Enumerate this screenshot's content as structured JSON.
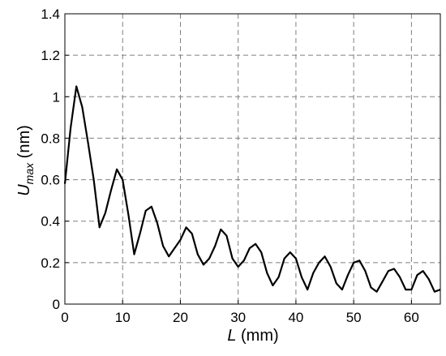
{
  "chart_data": {
    "type": "line",
    "xlabel": {
      "symbol": "L",
      "unit": " (mm)"
    },
    "ylabel": {
      "symbol": "U",
      "subscript": "max",
      "unit": " (nm)"
    },
    "xlim": [
      0,
      65
    ],
    "ylim": [
      0,
      1.4
    ],
    "xticks": [
      0,
      10,
      20,
      30,
      40,
      50,
      60
    ],
    "xtick_labels": [
      "0",
      "10",
      "20",
      "30",
      "40",
      "50",
      "60"
    ],
    "yticks": [
      0,
      0.2,
      0.4,
      0.6,
      0.8,
      1,
      1.2,
      1.4
    ],
    "ytick_labels": [
      "0",
      "0.2",
      "0.4",
      "0.6",
      "0.8",
      "1",
      "1.2",
      "1.4"
    ],
    "grid": true,
    "line_color": "#000000",
    "grid_color": "#808080",
    "series": [
      {
        "x": [
          0,
          1,
          2,
          3,
          4,
          5,
          6,
          7,
          8,
          9,
          10,
          11,
          12,
          13,
          14,
          15,
          16,
          17,
          18,
          19,
          20,
          21,
          22,
          23,
          24,
          25,
          26,
          27,
          28,
          29,
          30,
          31,
          32,
          33,
          34,
          35,
          36,
          37,
          38,
          39,
          40,
          41,
          42,
          43,
          44,
          45,
          46,
          47,
          48,
          49,
          50,
          51,
          52,
          53,
          54,
          55,
          56,
          57,
          58,
          59,
          60,
          61,
          62,
          63,
          64,
          65
        ],
        "y": [
          0.58,
          0.85,
          1.05,
          0.95,
          0.78,
          0.6,
          0.37,
          0.44,
          0.55,
          0.65,
          0.6,
          0.43,
          0.24,
          0.34,
          0.45,
          0.47,
          0.39,
          0.28,
          0.23,
          0.27,
          0.31,
          0.37,
          0.34,
          0.24,
          0.19,
          0.22,
          0.28,
          0.36,
          0.33,
          0.22,
          0.18,
          0.21,
          0.27,
          0.29,
          0.25,
          0.15,
          0.09,
          0.13,
          0.22,
          0.25,
          0.22,
          0.13,
          0.07,
          0.15,
          0.2,
          0.23,
          0.18,
          0.1,
          0.07,
          0.14,
          0.2,
          0.21,
          0.16,
          0.08,
          0.06,
          0.11,
          0.16,
          0.17,
          0.13,
          0.07,
          0.07,
          0.14,
          0.16,
          0.12,
          0.06,
          0.07
        ]
      }
    ]
  }
}
